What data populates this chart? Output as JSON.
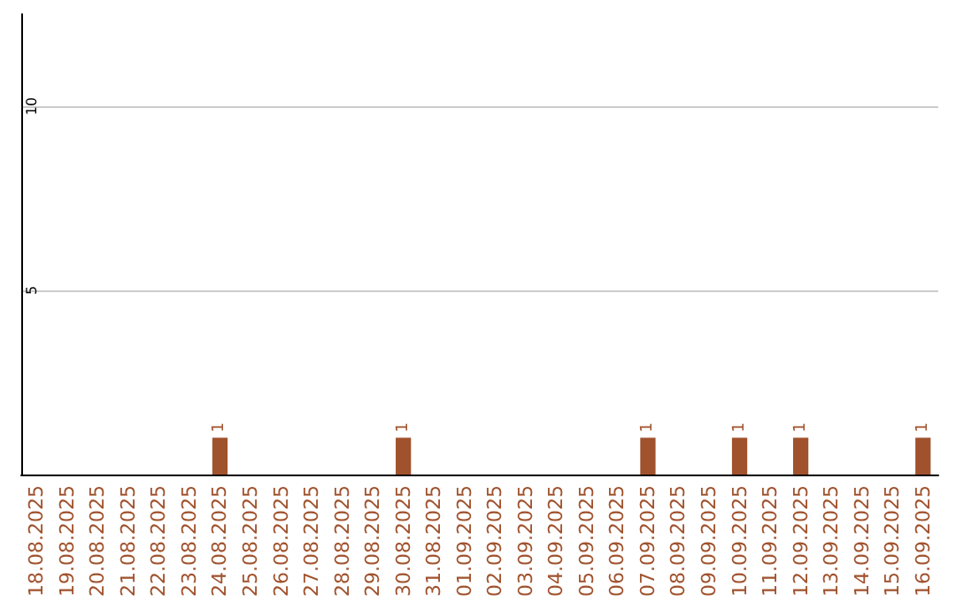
{
  "chart_data": {
    "type": "bar",
    "categories": [
      "18.08.2025",
      "19.08.2025",
      "20.08.2025",
      "21.08.2025",
      "22.08.2025",
      "23.08.2025",
      "24.08.2025",
      "25.08.2025",
      "26.08.2025",
      "27.08.2025",
      "28.08.2025",
      "29.08.2025",
      "30.08.2025",
      "31.08.2025",
      "01.09.2025",
      "02.09.2025",
      "03.09.2025",
      "04.09.2025",
      "05.09.2025",
      "06.09.2025",
      "07.09.2025",
      "08.09.2025",
      "09.09.2025",
      "10.09.2025",
      "11.09.2025",
      "12.09.2025",
      "13.09.2025",
      "14.09.2025",
      "15.09.2025",
      "16.09.2025"
    ],
    "values": [
      0,
      0,
      0,
      0,
      0,
      0,
      1,
      0,
      0,
      0,
      0,
      0,
      1,
      0,
      0,
      0,
      0,
      0,
      0,
      0,
      1,
      0,
      0,
      1,
      0,
      1,
      0,
      0,
      0,
      1
    ],
    "value_labels": [
      null,
      null,
      null,
      null,
      null,
      null,
      "1",
      null,
      null,
      null,
      null,
      null,
      "1",
      null,
      null,
      null,
      null,
      null,
      null,
      null,
      "1",
      null,
      null,
      "1",
      null,
      "1",
      null,
      null,
      null,
      "1"
    ],
    "color": "#a0522d",
    "ylim": [
      0,
      12.5
    ],
    "yticks": [
      5,
      10
    ],
    "grid": "y"
  }
}
